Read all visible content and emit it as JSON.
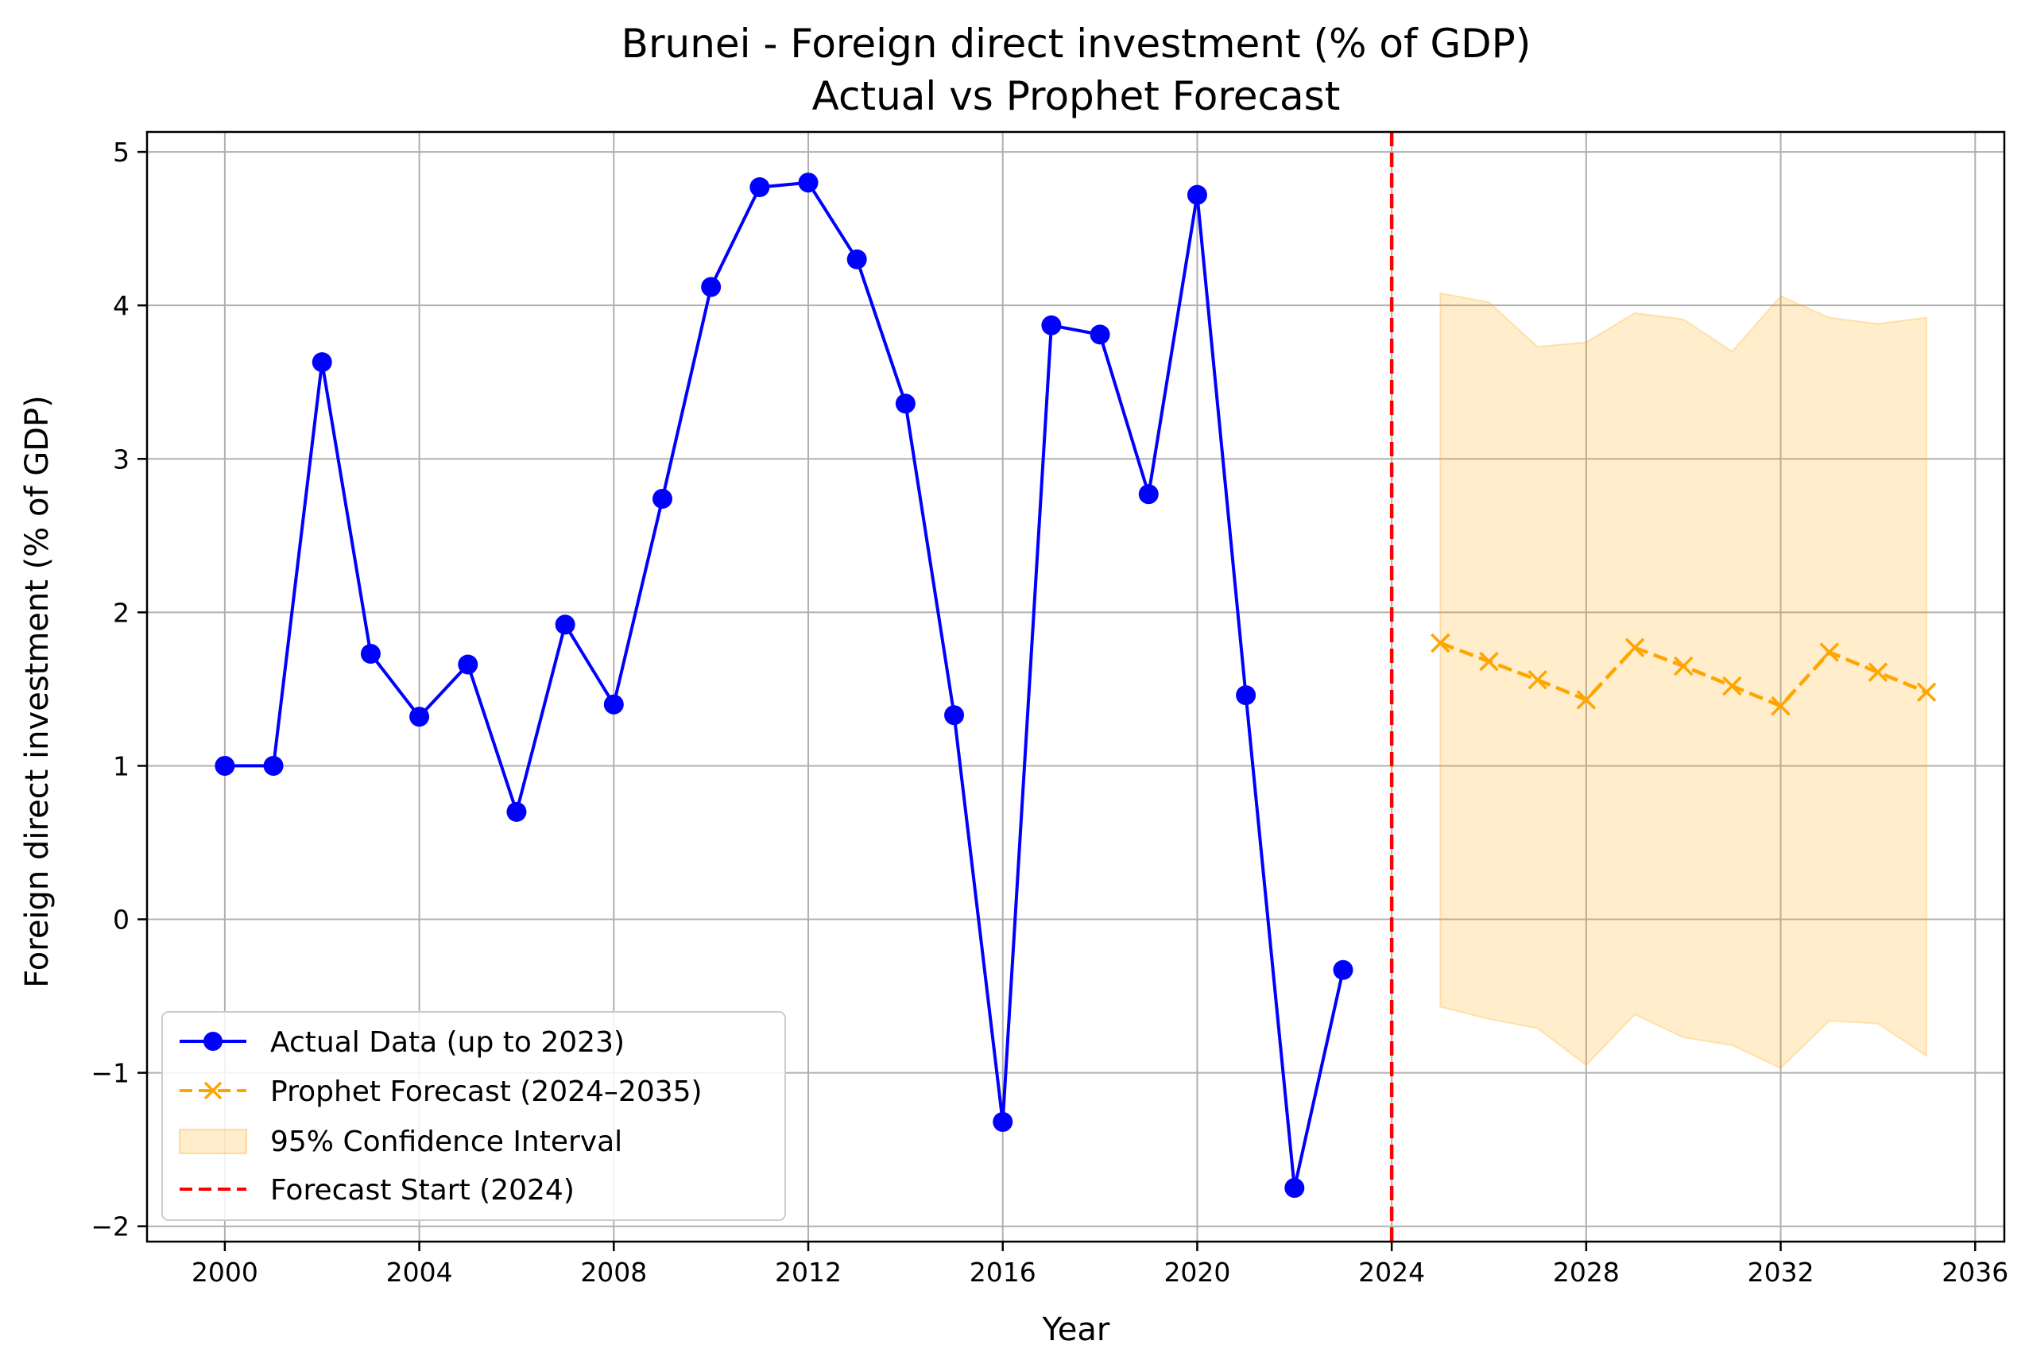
{
  "chart_data": {
    "type": "line",
    "title": "Brunei - Foreign direct investment (% of GDP)",
    "subtitle": "Actual vs Prophet Forecast",
    "xlabel": "Year",
    "ylabel": "Foreign direct investment (% of GDP)",
    "xlim": [
      1998.4,
      2036.6
    ],
    "ylim": [
      -2.1,
      5.13
    ],
    "x_ticks": [
      2000,
      2004,
      2008,
      2012,
      2016,
      2020,
      2024,
      2028,
      2032,
      2036
    ],
    "y_ticks": [
      -2,
      -1,
      0,
      1,
      2,
      3,
      4,
      5
    ],
    "y_tick_labels": [
      "−2",
      "−1",
      "0",
      "1",
      "2",
      "3",
      "4",
      "5"
    ],
    "grid": true,
    "legend_position": "lower-left",
    "series": [
      {
        "name": "Actual Data (up to 2023)",
        "style": "solid-line-circle-markers",
        "color": "#0000ff",
        "x": [
          2000,
          2001,
          2002,
          2003,
          2004,
          2005,
          2006,
          2007,
          2008,
          2009,
          2010,
          2011,
          2012,
          2013,
          2014,
          2015,
          2016,
          2017,
          2018,
          2019,
          2020,
          2021,
          2022,
          2023
        ],
        "y": [
          1.0,
          1.0,
          3.63,
          1.73,
          1.32,
          1.66,
          0.7,
          1.92,
          1.4,
          2.74,
          4.12,
          4.77,
          4.8,
          4.3,
          3.36,
          1.33,
          -1.32,
          3.87,
          3.81,
          2.77,
          4.72,
          1.46,
          -1.75,
          -0.33
        ]
      },
      {
        "name": "Prophet Forecast (2024–2035)",
        "style": "dashed-line-x-markers",
        "color": "#ffa500",
        "x": [
          2025,
          2026,
          2027,
          2028,
          2029,
          2030,
          2031,
          2032,
          2033,
          2034,
          2035
        ],
        "y": [
          1.8,
          1.68,
          1.56,
          1.43,
          1.77,
          1.65,
          1.52,
          1.39,
          1.74,
          1.61,
          1.48
        ]
      }
    ],
    "confidence_interval": {
      "name": "95% Confidence Interval",
      "color": "#ffa500",
      "x": [
        2025,
        2026,
        2027,
        2028,
        2029,
        2030,
        2031,
        2032,
        2033,
        2034,
        2035
      ],
      "lower": [
        -0.57,
        -0.65,
        -0.71,
        -0.95,
        -0.62,
        -0.77,
        -0.82,
        -0.97,
        -0.66,
        -0.68,
        -0.89
      ],
      "upper": [
        4.08,
        4.02,
        3.73,
        3.76,
        3.95,
        3.91,
        3.7,
        4.06,
        3.92,
        3.88,
        3.92
      ]
    },
    "forecast_start": {
      "name": "Forecast Start (2024)",
      "x": 2024,
      "color": "#ff0000"
    }
  }
}
